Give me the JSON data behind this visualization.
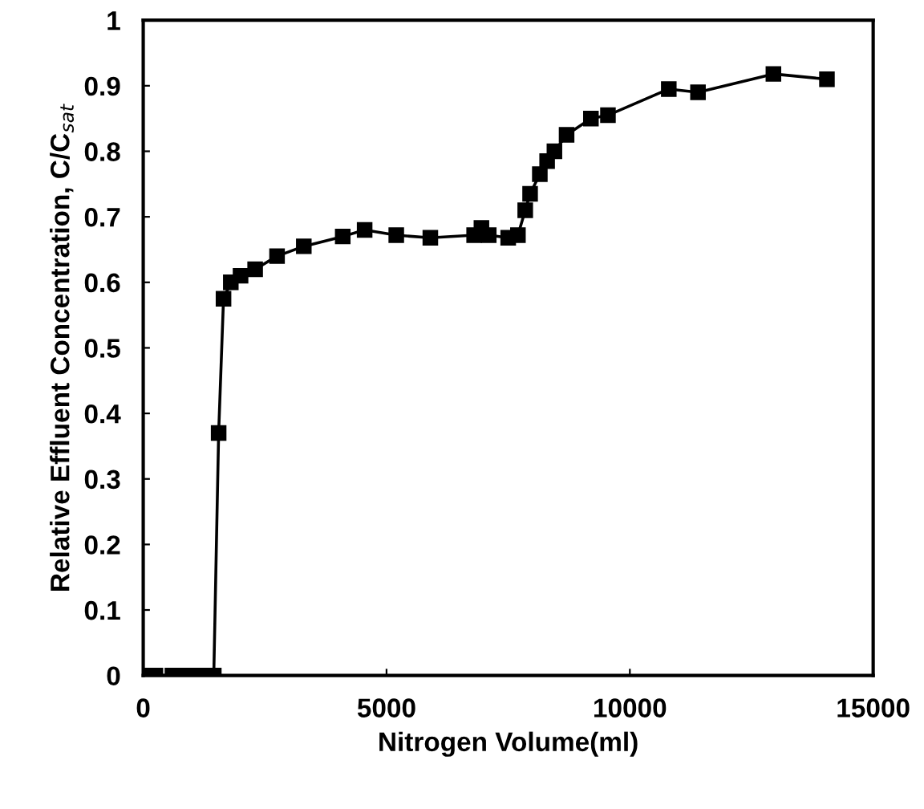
{
  "chart_data": {
    "type": "line",
    "xlabel": "Nitrogen Volume(ml)",
    "ylabel": "Relative Effluent Concentration, C/C$_{sat}$",
    "marker": "square",
    "line_style": "solid",
    "grid": false,
    "legend": false,
    "xlim": [
      0,
      15000
    ],
    "xticks": [
      0,
      5000,
      10000,
      15000
    ],
    "ylim": [
      0,
      1
    ],
    "yticks": [
      0,
      0.1,
      0.2,
      0.3,
      0.4,
      0.5,
      0.6,
      0.7,
      0.8,
      0.9,
      1
    ],
    "series": [
      {
        "color": "#000000",
        "x": [
          0,
          250,
          600,
          900,
          1150,
          1450,
          1550,
          1650,
          1800,
          2000,
          2300,
          2750,
          3300,
          4100,
          4550,
          5200,
          5900,
          6800,
          6950,
          7100,
          7500,
          7700,
          7850,
          7950,
          8150,
          8300,
          8450,
          8700,
          9200,
          9550,
          10800,
          11400,
          12950,
          14050
        ],
        "values": [
          0,
          0,
          0,
          0,
          0,
          0,
          0.37,
          0.575,
          0.6,
          0.61,
          0.62,
          0.64,
          0.655,
          0.67,
          0.68,
          0.672,
          0.668,
          0.672,
          0.683,
          0.672,
          0.668,
          0.672,
          0.71,
          0.735,
          0.765,
          0.785,
          0.8,
          0.825,
          0.85,
          0.855,
          0.895,
          0.89,
          0.918,
          0.91
        ]
      }
    ]
  }
}
